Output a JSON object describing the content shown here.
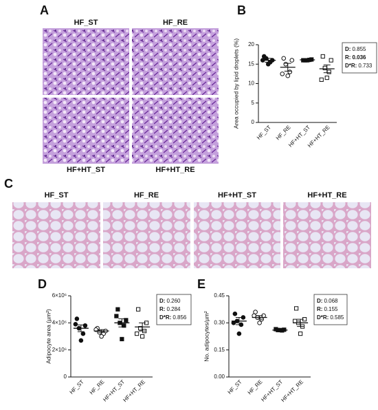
{
  "panels": {
    "A": {
      "letter": "A",
      "labels": [
        "HF_ST",
        "HF_RE",
        "HF+HT_ST",
        "HF+HT_RE"
      ]
    },
    "B": {
      "letter": "B"
    },
    "C": {
      "letter": "C",
      "labels": [
        "HF_ST",
        "HF_RE",
        "HF+HT_ST",
        "HF+HT_RE"
      ]
    },
    "D": {
      "letter": "D"
    },
    "E": {
      "letter": "E"
    }
  },
  "chart_data": [
    {
      "type": "dot",
      "y_label": "Area occupied by lipid droplets (%)",
      "categories": [
        "HF_ST",
        "HF_RE",
        "HF+HT_ST",
        "HF+HT_RE"
      ],
      "markers": [
        "circle-filled",
        "circle-open",
        "square-filled",
        "square-open"
      ],
      "color": "#111111",
      "points": [
        [
          17,
          16,
          16.5,
          15.5,
          15,
          16
        ],
        [
          16.5,
          16,
          15,
          13,
          12,
          12.5
        ],
        [
          16,
          16.2,
          16,
          16.1,
          16
        ],
        [
          17,
          16,
          14,
          13,
          11.5,
          11
        ]
      ],
      "means": [
        16,
        14.2,
        16.1,
        13.8
      ],
      "sem": [
        0.5,
        1,
        0.1,
        1
      ],
      "ylim": [
        0,
        20
      ],
      "yticks": [
        0,
        5,
        10,
        15,
        20
      ],
      "stats": [
        {
          "label": "D:",
          "value": "0.855"
        },
        {
          "label": "R:",
          "value": "0.036",
          "bold": true
        },
        {
          "label": "D*R:",
          "value": "0.733"
        }
      ]
    },
    {
      "type": "dot",
      "y_label": "Adipocyte area (µm²)",
      "categories": [
        "HF_ST",
        "HF_RE",
        "HF+HT_ST",
        "HF+HT_RE"
      ],
      "markers": [
        "circle-filled",
        "circle-open",
        "square-filled",
        "square-open"
      ],
      "color": "#111111",
      "points": [
        [
          4300000,
          3800000,
          3600000,
          3200000,
          2700000,
          3900000
        ],
        [
          3600000,
          3400000,
          3300000,
          3200000,
          3000000,
          3500000
        ],
        [
          5000000,
          4200000,
          4000000,
          3800000,
          2800000,
          4500000
        ],
        [
          5000000,
          4000000,
          3600000,
          3400000,
          3000000,
          3200000
        ]
      ],
      "means": [
        3600000,
        3400000,
        4000000,
        3700000
      ],
      "sem": [
        250000,
        100000,
        300000,
        300000
      ],
      "ylim": [
        0,
        6000000
      ],
      "yticks": [
        0,
        {
          "value": 2000000,
          "label": "2×10⁶"
        },
        {
          "value": 4000000,
          "label": "4×10⁶"
        },
        {
          "value": 6000000,
          "label": "6×10⁶"
        }
      ],
      "stats": [
        {
          "label": "D:",
          "value": "0.260"
        },
        {
          "label": "R:",
          "value": "0.284"
        },
        {
          "label": "D*R:",
          "value": "0.856"
        }
      ]
    },
    {
      "type": "dot",
      "y_label": "No. adipocytes/µm²",
      "categories": [
        "HF_ST",
        "HF_RE",
        "HF+HT_ST",
        "HF+HT_RE"
      ],
      "markers": [
        "circle-filled",
        "circle-open",
        "square-filled",
        "square-open"
      ],
      "color": "#111111",
      "points": [
        [
          0.35,
          0.33,
          0.31,
          0.29,
          0.24,
          0.3
        ],
        [
          0.36,
          0.34,
          0.33,
          0.32,
          0.3,
          0.34
        ],
        [
          0.265,
          0.262,
          0.26,
          0.258,
          0.26
        ],
        [
          0.38,
          0.32,
          0.3,
          0.28,
          0.24,
          0.31
        ]
      ],
      "means": [
        0.31,
        0.33,
        0.26,
        0.3
      ],
      "sem": [
        0.02,
        0.01,
        0.002,
        0.02
      ],
      "ylim": [
        0,
        0.45
      ],
      "yticks": [
        {
          "value": 0,
          "label": "0.00"
        },
        0.15,
        {
          "value": 0.3,
          "label": "0.30"
        },
        0.45
      ],
      "stats": [
        {
          "label": "D:",
          "value": "0.068"
        },
        {
          "label": "R:",
          "value": "0.155"
        },
        {
          "label": "D*R:",
          "value": "0.585"
        }
      ]
    }
  ]
}
